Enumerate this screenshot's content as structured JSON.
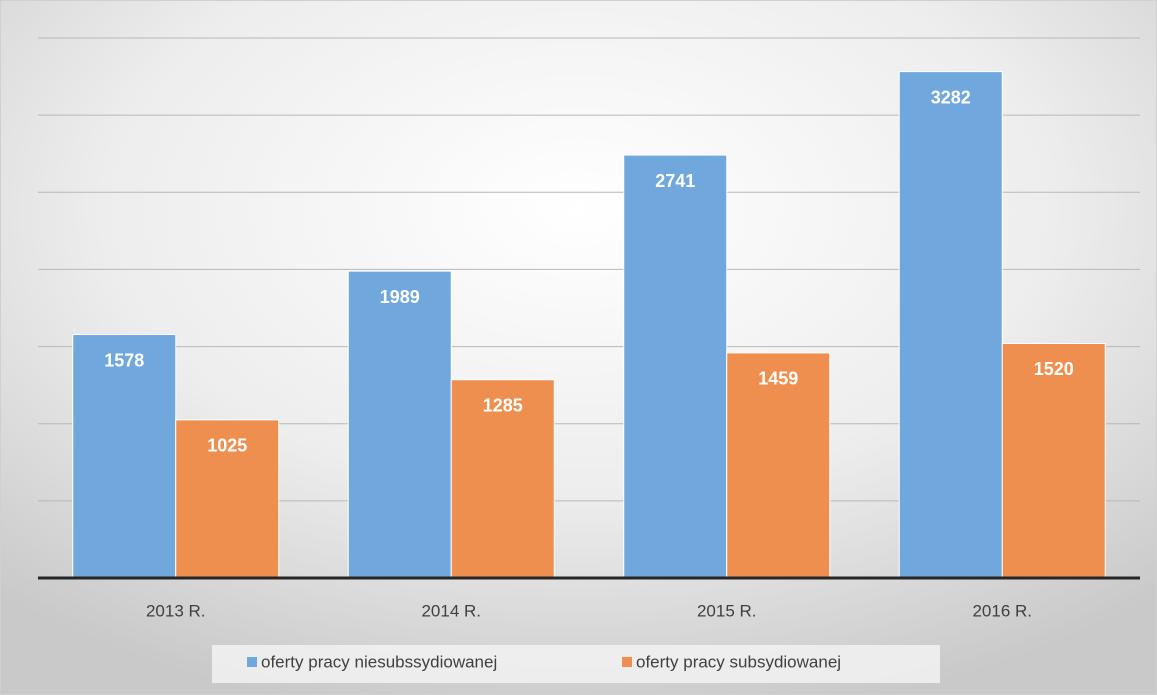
{
  "chart_data": {
    "type": "bar",
    "categories": [
      "2013 R.",
      "2014 R.",
      "2015 R.",
      "2016 R."
    ],
    "series": [
      {
        "name": "oferty pracy niesubssydiowanej",
        "color": "#70a7dc",
        "values": [
          1578,
          1989,
          2741,
          3282
        ]
      },
      {
        "name": "oferty pracy subsydiowanej",
        "color": "#ef8f4f",
        "values": [
          1025,
          1285,
          1459,
          1520
        ]
      }
    ],
    "ylim": [
      0,
      3500
    ],
    "yticks": [
      0,
      500,
      1000,
      1500,
      2000,
      2500,
      3000,
      3500
    ],
    "grid": true,
    "legend": "bottom"
  }
}
